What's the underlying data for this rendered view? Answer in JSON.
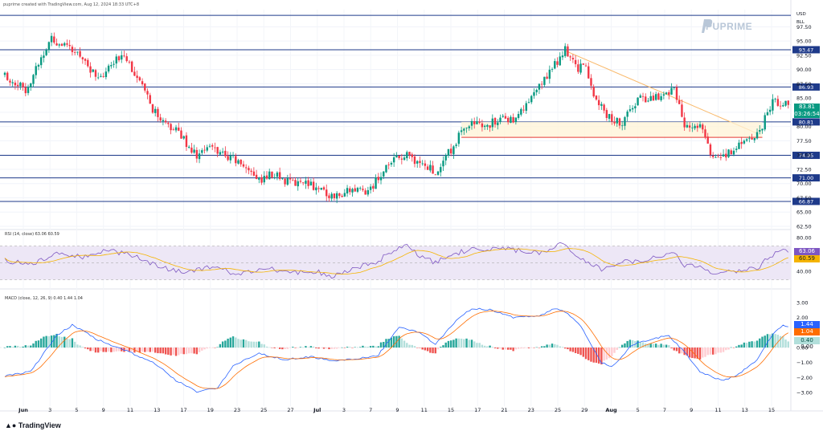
{
  "header": "puprime created with TradingView.com, Aug 12, 2024 18:33 UTC+8",
  "brand": "PUPRIME",
  "footer_logo": "TradingView",
  "price_axis": {
    "unit_labels": [
      "USD",
      "BLL"
    ],
    "ticks": [
      97.5,
      95.0,
      92.5,
      90.0,
      87.5,
      85.0,
      82.5,
      80.0,
      77.5,
      75.0,
      72.5,
      70.0,
      67.5,
      65.0,
      62.5
    ]
  },
  "levels": [
    {
      "value": 99.5,
      "label": ""
    },
    {
      "value": 93.47,
      "label": "93.47"
    },
    {
      "value": 86.93,
      "label": "86.93"
    },
    {
      "value": 80.81,
      "label": "80.81"
    },
    {
      "value": 74.95,
      "label": "74.95"
    },
    {
      "value": 71.0,
      "label": "71.00"
    },
    {
      "value": 66.87,
      "label": "66.87"
    }
  ],
  "last_price": {
    "value": "83.81",
    "countdown": "03:26:54",
    "color": "#089981"
  },
  "x_axis": [
    "Jun",
    "3",
    "5",
    "9",
    "11",
    "13",
    "17",
    "19",
    "23",
    "25",
    "27",
    "Jul",
    "3",
    "7",
    "9",
    "11",
    "15",
    "17",
    "21",
    "23",
    "25",
    "29",
    "Aug",
    "5",
    "7",
    "9",
    "11",
    "13",
    "15"
  ],
  "rsi": {
    "title": "RSI (14, close) 63.06 60.59",
    "ticks": [
      80.0,
      60.0,
      40.0
    ],
    "value": "63.06",
    "ma": "60.59",
    "colors": {
      "rsi": "#7e57c2",
      "ma": "#f5b400",
      "band": "#ede7f6"
    }
  },
  "macd": {
    "title": "MACD (close, 12, 26, 9) 0.40 1.44 1.04",
    "ticks": [
      "3.00",
      "2.00",
      "1.00",
      "0.00",
      "−1.00",
      "−2.00",
      "−3.00"
    ],
    "macd": "1.44",
    "signal": "1.04",
    "hist": "0.40",
    "zero": "0.00",
    "colors": {
      "macd": "#2962ff",
      "signal": "#ff6d00",
      "up": "#26a69a",
      "down": "#ef5350"
    }
  },
  "chart_data": {
    "type": "candlestick",
    "title": "",
    "y_range": [
      62.5,
      100.5
    ],
    "colors": {
      "up": "#089981",
      "down": "#f23645"
    },
    "anchors": [
      [
        0,
        89.0
      ],
      [
        8,
        86.5
      ],
      [
        14,
        92.0
      ],
      [
        18,
        95.6
      ],
      [
        24,
        93.6
      ],
      [
        30,
        92.3
      ],
      [
        36,
        87.9
      ],
      [
        40,
        90.0
      ],
      [
        46,
        93.1
      ],
      [
        52,
        87.5
      ],
      [
        60,
        80.6
      ],
      [
        66,
        79.5
      ],
      [
        74,
        74.9
      ],
      [
        80,
        76.4
      ],
      [
        86,
        74.7
      ],
      [
        94,
        72.6
      ],
      [
        98,
        70.5
      ],
      [
        104,
        71.8
      ],
      [
        110,
        70.0
      ],
      [
        116,
        70.5
      ],
      [
        122,
        68.8
      ],
      [
        126,
        67.8
      ],
      [
        134,
        68.9
      ],
      [
        140,
        68.6
      ],
      [
        148,
        73.4
      ],
      [
        154,
        75.0
      ],
      [
        162,
        73.2
      ],
      [
        166,
        72.1
      ],
      [
        172,
        76.0
      ],
      [
        178,
        80.4
      ],
      [
        184,
        80.0
      ],
      [
        190,
        81.0
      ],
      [
        196,
        81.5
      ],
      [
        202,
        84.0
      ],
      [
        210,
        89.8
      ],
      [
        216,
        93.3
      ],
      [
        220,
        90.5
      ],
      [
        224,
        90.0
      ],
      [
        228,
        84.5
      ],
      [
        234,
        81.0
      ],
      [
        238,
        80.5
      ],
      [
        244,
        84.9
      ],
      [
        252,
        85.2
      ],
      [
        258,
        86.7
      ],
      [
        262,
        80.3
      ],
      [
        268,
        80.6
      ],
      [
        272,
        75.2
      ],
      [
        278,
        74.6
      ],
      [
        282,
        76.9
      ],
      [
        288,
        77.4
      ],
      [
        292,
        80.0
      ],
      [
        296,
        84.9
      ],
      [
        300,
        83.6
      ],
      [
        302,
        83.81
      ]
    ],
    "rsi_anchors": [
      [
        0,
        53
      ],
      [
        10,
        48
      ],
      [
        20,
        62
      ],
      [
        30,
        57
      ],
      [
        40,
        65
      ],
      [
        50,
        58
      ],
      [
        60,
        44
      ],
      [
        70,
        40
      ],
      [
        80,
        46
      ],
      [
        90,
        36
      ],
      [
        100,
        44
      ],
      [
        110,
        38
      ],
      [
        120,
        40
      ],
      [
        126,
        34
      ],
      [
        134,
        42
      ],
      [
        144,
        52
      ],
      [
        150,
        66
      ],
      [
        154,
        72
      ],
      [
        160,
        58
      ],
      [
        166,
        50
      ],
      [
        172,
        60
      ],
      [
        180,
        66
      ],
      [
        190,
        67
      ],
      [
        200,
        64
      ],
      [
        208,
        62
      ],
      [
        214,
        74
      ],
      [
        218,
        66
      ],
      [
        224,
        50
      ],
      [
        230,
        43
      ],
      [
        236,
        50
      ],
      [
        244,
        52
      ],
      [
        252,
        57
      ],
      [
        258,
        63
      ],
      [
        262,
        45
      ],
      [
        268,
        47
      ],
      [
        272,
        38
      ],
      [
        280,
        39
      ],
      [
        290,
        44
      ],
      [
        296,
        60
      ],
      [
        300,
        67
      ],
      [
        302,
        63
      ]
    ],
    "macd_anchors": [
      [
        0,
        -1.9
      ],
      [
        10,
        -1.6
      ],
      [
        20,
        0.8
      ],
      [
        26,
        1.5
      ],
      [
        36,
        0.5
      ],
      [
        48,
        -0.3
      ],
      [
        58,
        -1.1
      ],
      [
        66,
        -2.2
      ],
      [
        74,
        -2.95
      ],
      [
        82,
        -2.7
      ],
      [
        88,
        -1.2
      ],
      [
        98,
        -0.4
      ],
      [
        108,
        -0.8
      ],
      [
        118,
        -0.6
      ],
      [
        126,
        -0.9
      ],
      [
        134,
        -0.8
      ],
      [
        144,
        -0.5
      ],
      [
        152,
        1.4
      ],
      [
        160,
        1.0
      ],
      [
        166,
        0.2
      ],
      [
        174,
        1.8
      ],
      [
        180,
        2.6
      ],
      [
        188,
        2.5
      ],
      [
        196,
        2.0
      ],
      [
        206,
        2.1
      ],
      [
        212,
        2.6
      ],
      [
        216,
        2.4
      ],
      [
        222,
        1.4
      ],
      [
        230,
        -1.0
      ],
      [
        234,
        -1.3
      ],
      [
        242,
        0.2
      ],
      [
        250,
        0.6
      ],
      [
        256,
        0.8
      ],
      [
        262,
        -0.3
      ],
      [
        268,
        -1.6
      ],
      [
        276,
        -2.2
      ],
      [
        282,
        -1.9
      ],
      [
        290,
        -0.8
      ],
      [
        296,
        0.9
      ],
      [
        300,
        1.5
      ],
      [
        302,
        1.44
      ]
    ]
  }
}
